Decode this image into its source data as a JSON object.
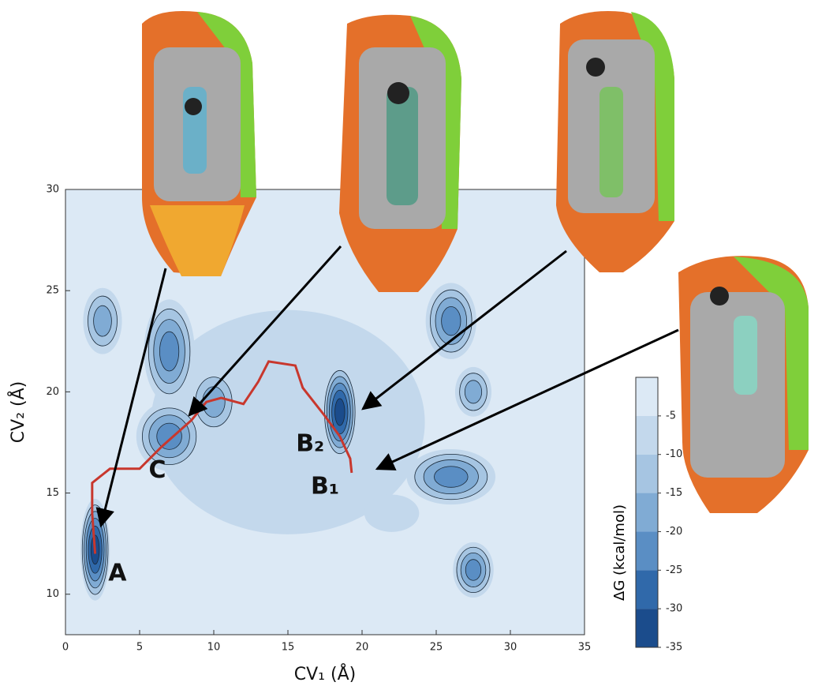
{
  "chart_data": {
    "type": "contour",
    "x_label": "CV₁ (Å)",
    "y_label": "CV₂ (Å)",
    "xlim": [
      0,
      35
    ],
    "ylim": [
      8,
      30
    ],
    "xticks": [
      0,
      5,
      10,
      15,
      20,
      25,
      30,
      35
    ],
    "yticks": [
      10,
      15,
      20,
      25,
      30
    ],
    "colorbar_label": "ΔG (kcal/mol)",
    "clim": [
      -35,
      0
    ],
    "colorbar_ticks": [
      -5,
      -10,
      -15,
      -20,
      -25,
      -30,
      -35
    ],
    "colors": [
      "#dce9f5",
      "#c3d8ec",
      "#a6c5e2",
      "#80abd4",
      "#5a8ec4",
      "#3069aa",
      "#1b4c8c"
    ],
    "basins": [
      {
        "x": 15,
        "y": 18.5,
        "dG": -10,
        "sx": 15,
        "sy": 9
      },
      {
        "x": 13,
        "y": 21,
        "dG": -10,
        "sx": 3,
        "sy": 2
      },
      {
        "x": 22,
        "y": 14,
        "dG": -10,
        "sx": 3,
        "sy": 1.5
      },
      {
        "x": 2,
        "y": 12.2,
        "dG": -35,
        "sx": 1.1,
        "sy": 2.8
      },
      {
        "x": 2.5,
        "y": 23.5,
        "dG": -20,
        "sx": 1.6,
        "sy": 2
      },
      {
        "x": 7,
        "y": 22,
        "dG": -25,
        "sx": 2,
        "sy": 3
      },
      {
        "x": 7,
        "y": 17.8,
        "dG": -25,
        "sx": 2.6,
        "sy": 2
      },
      {
        "x": 10,
        "y": 19.5,
        "dG": -20,
        "sx": 2,
        "sy": 2
      },
      {
        "x": 18.5,
        "y": 19,
        "dG": -35,
        "sx": 1.3,
        "sy": 2.6
      },
      {
        "x": 26,
        "y": 23.5,
        "dG": -25,
        "sx": 2,
        "sy": 2.2
      },
      {
        "x": 27.5,
        "y": 20,
        "dG": -20,
        "sx": 1.5,
        "sy": 1.5
      },
      {
        "x": 26,
        "y": 15.8,
        "dG": -25,
        "sx": 3.5,
        "sy": 1.6
      },
      {
        "x": 27.5,
        "y": 11.2,
        "dG": -25,
        "sx": 1.6,
        "sy": 1.6
      }
    ],
    "path": {
      "color": "#c8372d",
      "x": [
        2,
        1.8,
        1.8,
        3,
        5,
        6.5,
        8.5,
        9.5,
        10.5,
        12,
        13,
        13.7,
        15.5,
        16,
        17.5,
        18.5,
        19.2,
        19.3
      ],
      "y": [
        12,
        14,
        15.5,
        16.2,
        16.2,
        17.3,
        18.6,
        19.5,
        19.7,
        19.4,
        20.5,
        21.5,
        21.3,
        20.2,
        18.8,
        17.8,
        16.7,
        16
      ]
    },
    "annotations": [
      {
        "text": "A",
        "x": 3.5,
        "y": 11
      },
      {
        "text": "C",
        "x": 6.2,
        "y": 16.1
      },
      {
        "text": "B₂",
        "x": 16.5,
        "y": 17.4
      },
      {
        "text": "B₁",
        "x": 17.5,
        "y": 15.3
      }
    ]
  }
}
